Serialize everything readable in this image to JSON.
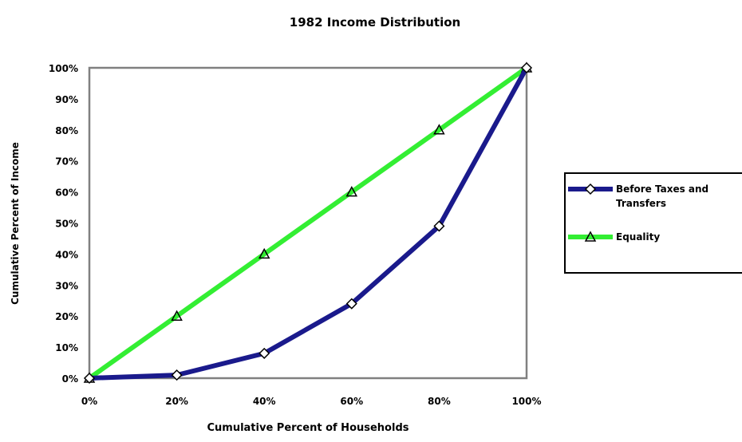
{
  "chart_data": {
    "type": "line",
    "title": "1982 Income Distribution",
    "xlabel": "Cumulative Percent of Households",
    "ylabel": "Cumulative Percent of Income",
    "x": [
      0,
      20,
      40,
      60,
      80,
      100
    ],
    "x_tick_labels": [
      "0%",
      "20%",
      "40%",
      "60%",
      "80%",
      "100%"
    ],
    "y_tick_labels": [
      "0%",
      "10%",
      "20%",
      "30%",
      "40%",
      "50%",
      "60%",
      "70%",
      "80%",
      "90%",
      "100%"
    ],
    "xlim": [
      0,
      100
    ],
    "ylim": [
      0,
      100
    ],
    "grid": false,
    "legend_position": "right",
    "series": [
      {
        "name": "Before Taxes and Transfers",
        "values": [
          0,
          1,
          8,
          24,
          49,
          100
        ],
        "color": "#1a1a8c",
        "marker": "diamond"
      },
      {
        "name": "Equality",
        "values": [
          0,
          20,
          40,
          60,
          80,
          100
        ],
        "color": "#33ee33",
        "marker": "triangle"
      }
    ]
  }
}
